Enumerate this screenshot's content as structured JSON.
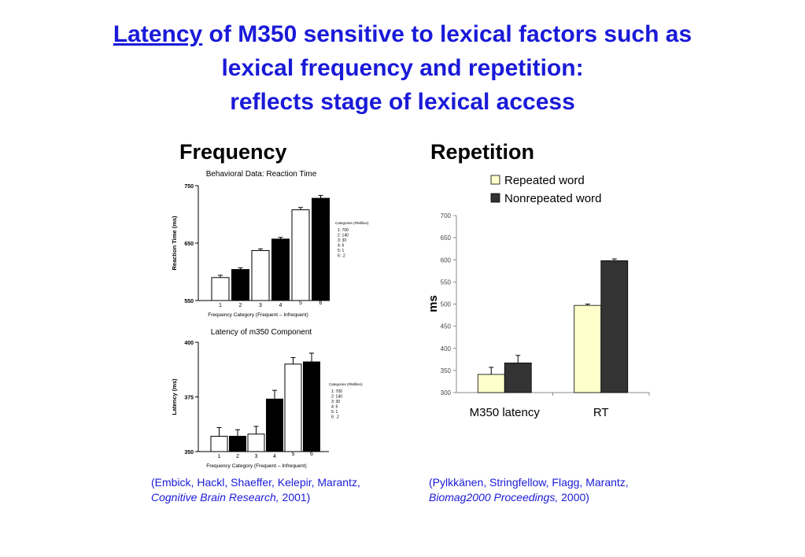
{
  "title": {
    "line1_underlined": "Latency",
    "line1_rest": " of M350 sensitive to lexical factors such as",
    "line2": "lexical frequency and repetition:",
    "line3": "reflects stage of lexical access"
  },
  "headings": {
    "left": "Frequency",
    "right": "Repetition"
  },
  "citations": {
    "left": {
      "line1": "(Embick, Hackl, Shaeffer, Kelepir, Marantz,",
      "journal": "Cognitive Brain Research,",
      "year": " 2001)"
    },
    "right": {
      "line1": "(Pylkkänen, Stringfellow, Flagg, Marantz,",
      "journal": "Biomag2000 Proceedings,",
      "year": " 2000)"
    }
  },
  "colors": {
    "title": "#1a1ad8",
    "repeated": "#ffffcc",
    "nonrepeated": "#333333",
    "open_bar": "#ffffff",
    "filled_bar": "#000000"
  },
  "chart_data": [
    {
      "type": "bar",
      "title": "Behavioral Data: Reaction Time",
      "xlabel": "Frequency Category (Frequent – Infrequent)",
      "ylabel": "Reaction Time (ms)",
      "ylim": [
        550,
        750
      ],
      "yticks": [
        550,
        650,
        750
      ],
      "categories": [
        "1",
        "2",
        "3",
        "4",
        "5",
        "6"
      ],
      "values": [
        590,
        604,
        637,
        657,
        708,
        728
      ],
      "errors": [
        4,
        3,
        3,
        3,
        4,
        5
      ],
      "fills": [
        "open",
        "filled",
        "open",
        "filled",
        "open",
        "filled"
      ],
      "legend_title": "Categories (#/Million)",
      "legend_items": [
        "1: 700",
        "2: 140",
        "3: 30",
        "4: 6",
        "5: 1",
        "6: .2"
      ],
      "legend_placement": "right"
    },
    {
      "type": "bar",
      "title": "Latency of m350 Component",
      "xlabel": "Frequency Category (Frequent – Infrequent)",
      "ylabel": "Latency (ms)",
      "ylim": [
        350,
        400
      ],
      "yticks": [
        350,
        375,
        400
      ],
      "categories": [
        "1",
        "2",
        "3",
        "4",
        "5",
        "6"
      ],
      "values": [
        357,
        357,
        358,
        374,
        390,
        391
      ],
      "errors": [
        4,
        3,
        3.5,
        4,
        3,
        4
      ],
      "fills": [
        "open",
        "filled",
        "open",
        "filled",
        "open",
        "filled"
      ],
      "legend_title": "Categories (#/Million)",
      "legend_items": [
        "1: 700",
        "2: 140",
        "3: 30",
        "4: 6",
        "5: 1",
        "6: .2"
      ],
      "legend_placement": "right"
    },
    {
      "type": "bar",
      "ylabel": "ms",
      "ylim": [
        300,
        700
      ],
      "yticks": [
        300,
        350,
        400,
        450,
        500,
        550,
        600,
        650,
        700
      ],
      "categories": [
        "M350 latency",
        "RT"
      ],
      "series": [
        {
          "name": "Repeated word",
          "values": [
            341,
            497
          ],
          "errors": [
            16,
            3
          ]
        },
        {
          "name": "Nonrepeated word",
          "values": [
            367,
            598
          ],
          "errors": [
            17,
            4
          ]
        }
      ],
      "legend_placement": "top"
    }
  ]
}
